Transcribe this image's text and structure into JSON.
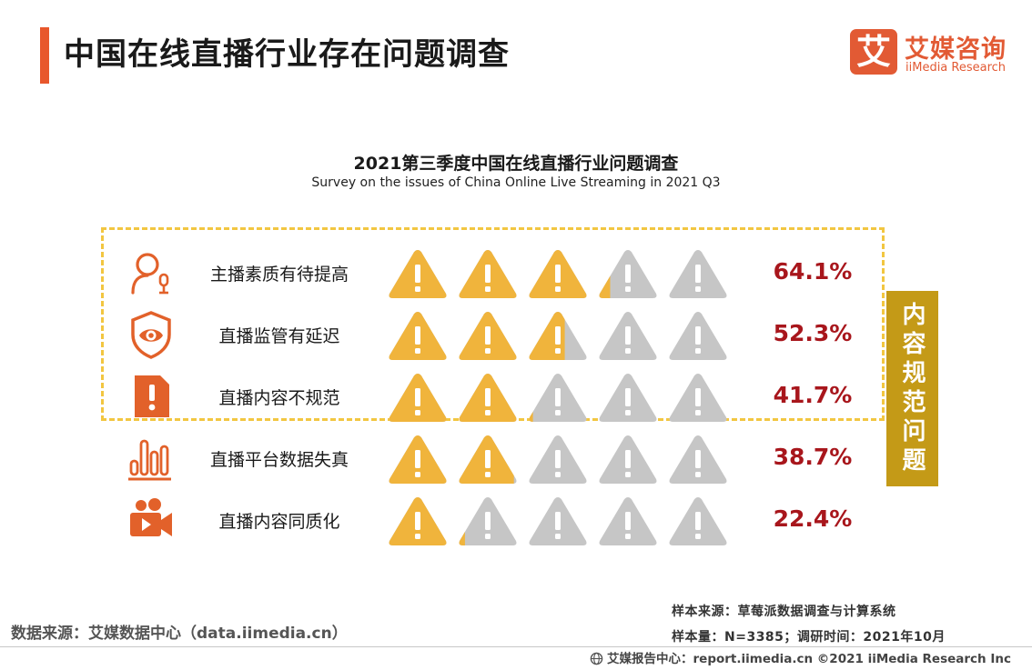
{
  "header": {
    "title": "中国在线直播行业存在问题调查"
  },
  "logo": {
    "glyph": "艾",
    "cn": "艾媒咨询",
    "en": "iiMedia Research",
    "color": "#e25a34"
  },
  "chart_data": {
    "type": "pictograph",
    "title": "2021第三季度中国在线直播行业问题调查",
    "subtitle": "Survey on the issues of China Online Live Streaming in 2021 Q3",
    "unit": "%",
    "icons_per_row": 5,
    "icon_value": 20,
    "categories": [
      "主播素质有待提高",
      "直播监管有延迟",
      "直播内容不规范",
      "直播平台数据失真",
      "直播内容同质化"
    ],
    "values": [
      64.1,
      52.3,
      41.7,
      38.7,
      22.4
    ],
    "value_labels": [
      "64.1%",
      "52.3%",
      "41.7%",
      "38.7%",
      "22.4%"
    ],
    "row_icons": [
      "anchor-person-icon",
      "shield-eye-icon",
      "warning-document-icon",
      "bar-data-icon",
      "video-camera-icon"
    ],
    "highlight_group": {
      "label": "内容规范问题",
      "rows": [
        0,
        1,
        2
      ]
    },
    "colors": {
      "filled": "#f0b43c",
      "empty": "#c6c6c6",
      "icon": "#e2612a",
      "value": "#a8161c",
      "group": "#c49a17",
      "dash": "#f2c641"
    }
  },
  "footer": {
    "data_source": "数据来源：艾媒数据中心（data.iimedia.cn）",
    "sample_source": "样本来源：草莓派数据调查与计算系统",
    "sample_size": "样本量：N=3385；调研时间：2021年10月",
    "copyright": "艾媒报告中心：report.iimedia.cn  ©2021  iiMedia Research  Inc"
  }
}
